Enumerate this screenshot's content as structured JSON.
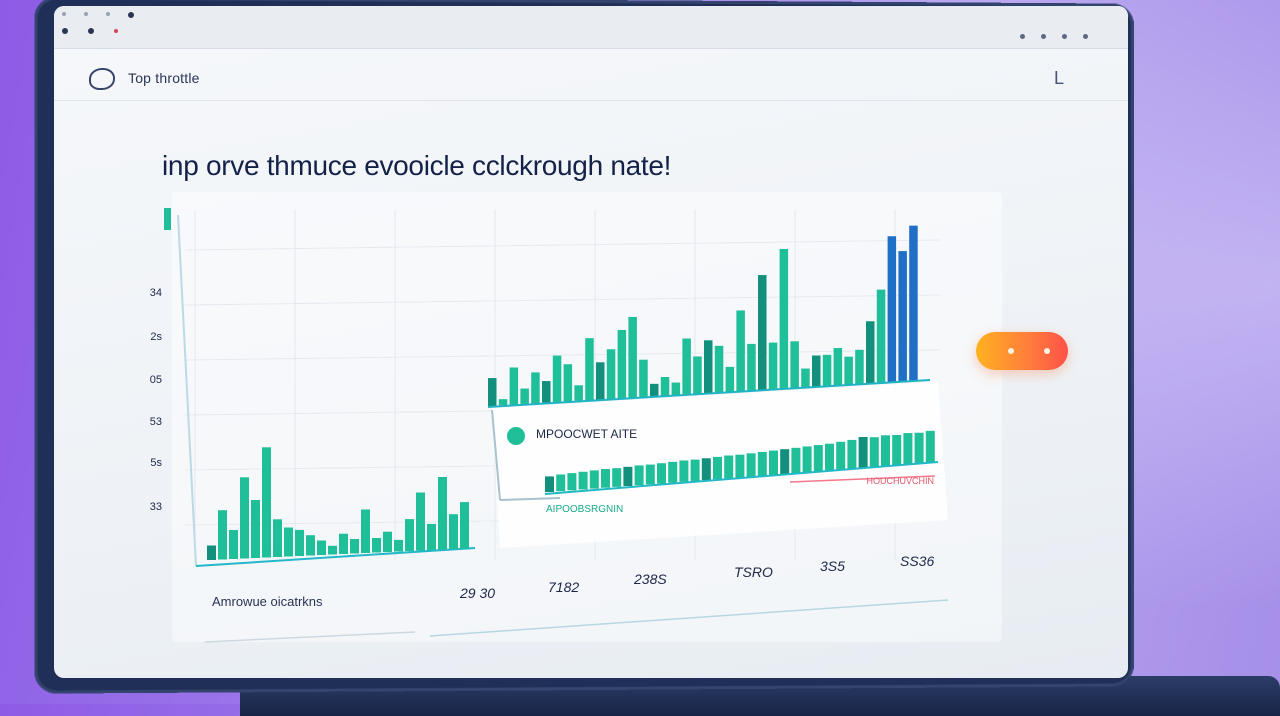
{
  "app": {
    "title": "Top throttle",
    "headline": "inp   orve thmuce evooicle cclckrough nate!"
  },
  "chart_data": {
    "type": "bar",
    "y_ticks": [
      "34",
      "2s",
      "05",
      "53",
      "5s",
      "33"
    ],
    "series": [
      {
        "values": [
          0.05,
          0.17,
          0.1,
          0.28,
          0.2,
          0.38,
          0.13,
          0.1,
          0.09,
          0.07,
          0.05,
          0.03,
          0.07,
          0.05,
          0.15,
          0.05,
          0.07,
          0.04,
          0.11,
          0.2,
          0.09,
          0.25,
          0.12,
          0.16
        ]
      },
      {
        "values": [
          0.09,
          0.02,
          0.12,
          0.05,
          0.1,
          0.07,
          0.15,
          0.12,
          0.05,
          0.2,
          0.12,
          0.16,
          0.22,
          0.26,
          0.12,
          0.04,
          0.06,
          0.04,
          0.18,
          0.12,
          0.17,
          0.15,
          0.08,
          0.26,
          0.15,
          0.37,
          0.15,
          0.45,
          0.15,
          0.06,
          0.1,
          0.1,
          0.12,
          0.09,
          0.11,
          0.2,
          0.3,
          0.47,
          0.42,
          0.5
        ]
      },
      {
        "values": [
          0.3,
          0.32,
          0.33,
          0.34,
          0.35,
          0.36,
          0.36,
          0.37,
          0.38,
          0.38,
          0.39,
          0.4,
          0.41,
          0.41,
          0.42,
          0.43,
          0.44,
          0.44,
          0.45,
          0.46,
          0.47,
          0.48,
          0.49,
          0.5,
          0.51,
          0.52,
          0.54,
          0.56,
          0.6,
          0.58,
          0.6,
          0.59,
          0.61,
          0.6,
          0.62
        ]
      }
    ],
    "legend_title": "MPOOCWET AITE",
    "sublabel_left": "AIPOOBSRGNIN",
    "sublabel_right": "HOUCHUVCHIN",
    "bottom_label": "Amrowue oicatrkns",
    "stat_values": [
      "29 30",
      "7182",
      "238S",
      "TSRO",
      "3S5",
      "SS36"
    ]
  },
  "colors": {
    "bar": "#1fbf9a",
    "bar_dark": "#128f7d",
    "bar_blue": "#1f6fc7",
    "cta": "#ff7a3c",
    "headline": "#142148"
  }
}
